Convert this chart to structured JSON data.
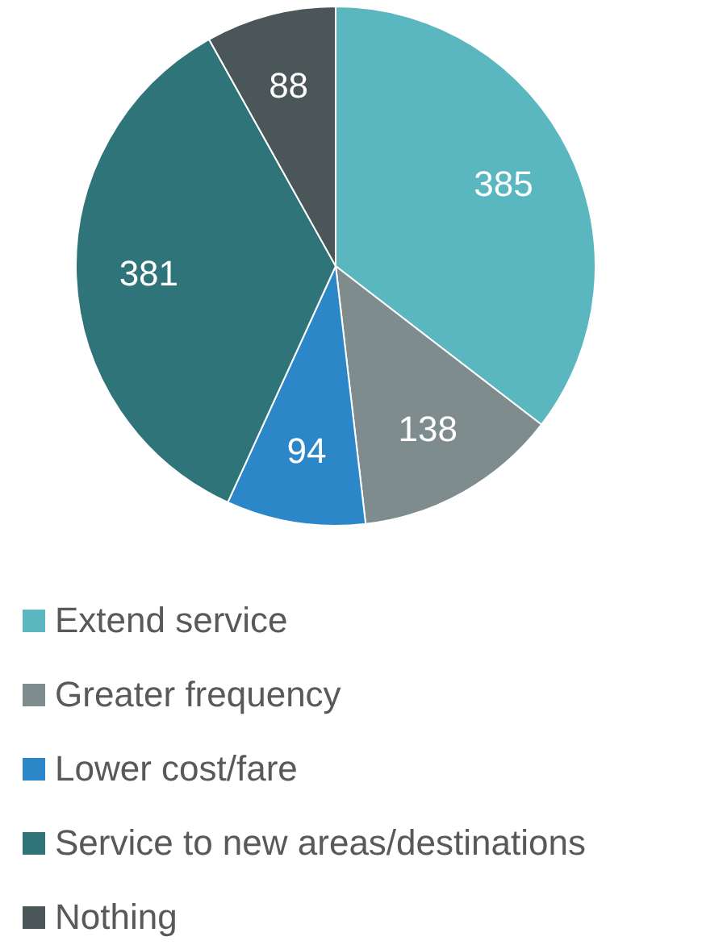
{
  "chart_data": {
    "type": "pie",
    "categories": [
      "Extend service",
      "Greater frequency",
      "Lower cost/fare",
      "Service to new areas/destinations",
      "Nothing"
    ],
    "values": [
      385,
      138,
      94,
      381,
      88
    ],
    "colors": [
      "#5ab7c0",
      "#7f8c8d",
      "#2b87c8",
      "#2e7479",
      "#4a5658"
    ],
    "data_labels": true,
    "legend": "bottom"
  }
}
